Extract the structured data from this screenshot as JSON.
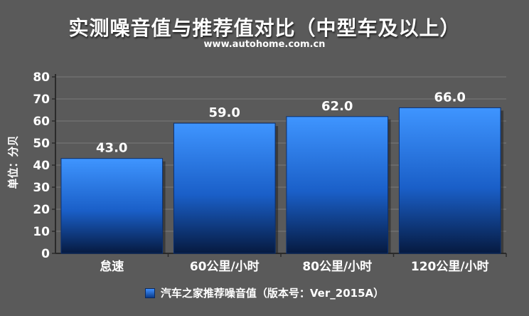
{
  "chart_data": {
    "type": "bar",
    "title": "实测噪音值与推荐值对比（中型车及以上）",
    "subtitle": "www.autohome.com.cn",
    "ylabel": "单位：分贝",
    "categories": [
      "怠速",
      "60公里/小时",
      "80公里/小时",
      "120公里/小时"
    ],
    "series": [
      {
        "name": "汽车之家推荐噪音值（版本号：Ver_2015A）",
        "values": [
          43.0,
          59.0,
          62.0,
          66.0
        ]
      }
    ],
    "data_labels": [
      "43.0",
      "59.0",
      "62.0",
      "66.0"
    ],
    "ylim": [
      0,
      80
    ],
    "yticks": [
      0,
      10,
      20,
      30,
      40,
      50,
      60,
      70,
      80
    ],
    "grid": true,
    "legend_position": "bottom"
  },
  "colors": {
    "background": "#5a5a5a",
    "plot_background": "#5a5a5a",
    "bar_top": "#3f95ff",
    "bar_bottom": "#061a40",
    "grid": "#7a7a7a",
    "axis": "#2a2a2a",
    "text": "#ffffff"
  }
}
